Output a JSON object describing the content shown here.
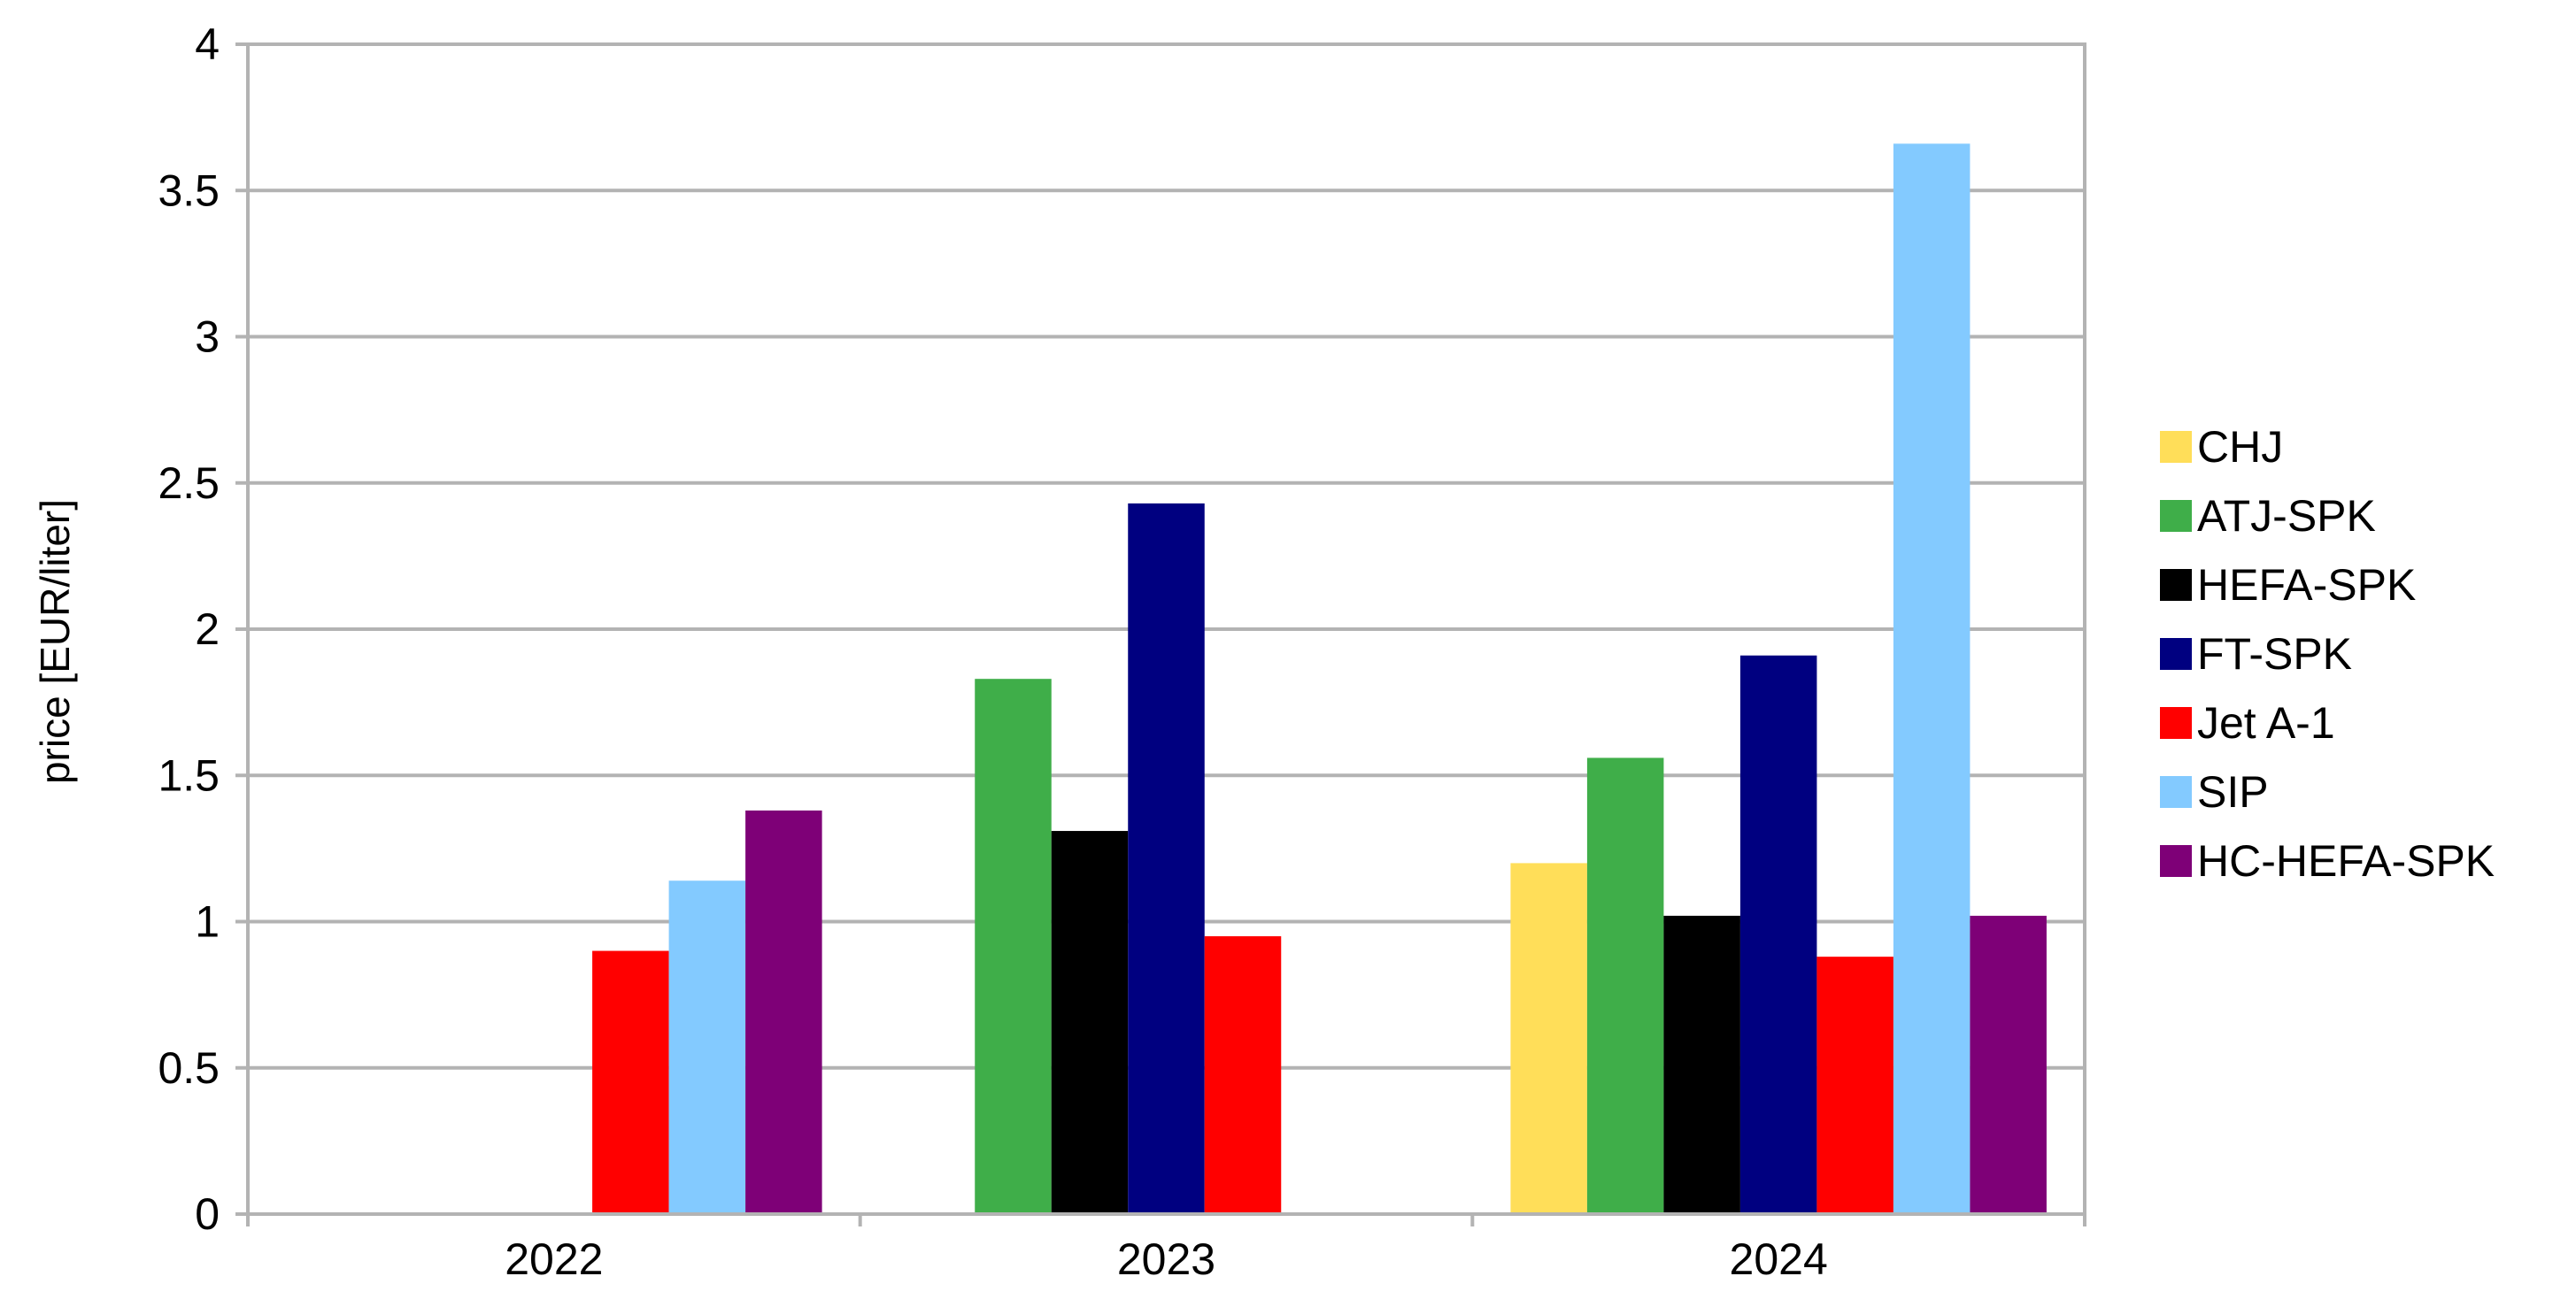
{
  "chart_data": {
    "type": "bar",
    "ylabel": "price [EUR/liter]",
    "ylim": [
      0,
      4
    ],
    "y_ticks": [
      "0",
      "0.5",
      "1",
      "1.5",
      "2",
      "2.5",
      "3",
      "3.5",
      "4"
    ],
    "y_tick_values": [
      0,
      0.5,
      1,
      1.5,
      2,
      2.5,
      3,
      3.5,
      4
    ],
    "grid": true,
    "legend_position": "right",
    "categories": [
      "2022",
      "2023",
      "2024"
    ],
    "series": [
      {
        "name": "CHJ",
        "color": "#FFDE59",
        "values": [
          null,
          null,
          1.2
        ]
      },
      {
        "name": "ATJ-SPK",
        "color": "#3FAE49",
        "values": [
          null,
          1.83,
          1.56
        ]
      },
      {
        "name": "HEFA-SPK",
        "color": "#000000",
        "values": [
          null,
          1.31,
          1.02
        ]
      },
      {
        "name": "FT-SPK",
        "color": "#000080",
        "values": [
          null,
          2.43,
          1.91
        ]
      },
      {
        "name": "Jet A-1",
        "color": "#FF0000",
        "values": [
          0.9,
          0.95,
          0.88
        ]
      },
      {
        "name": "SIP",
        "color": "#83CAFF",
        "values": [
          1.14,
          null,
          3.66
        ]
      },
      {
        "name": "HC-HEFA-SPK",
        "color": "#7E0077",
        "values": [
          1.38,
          null,
          1.02
        ]
      }
    ]
  }
}
